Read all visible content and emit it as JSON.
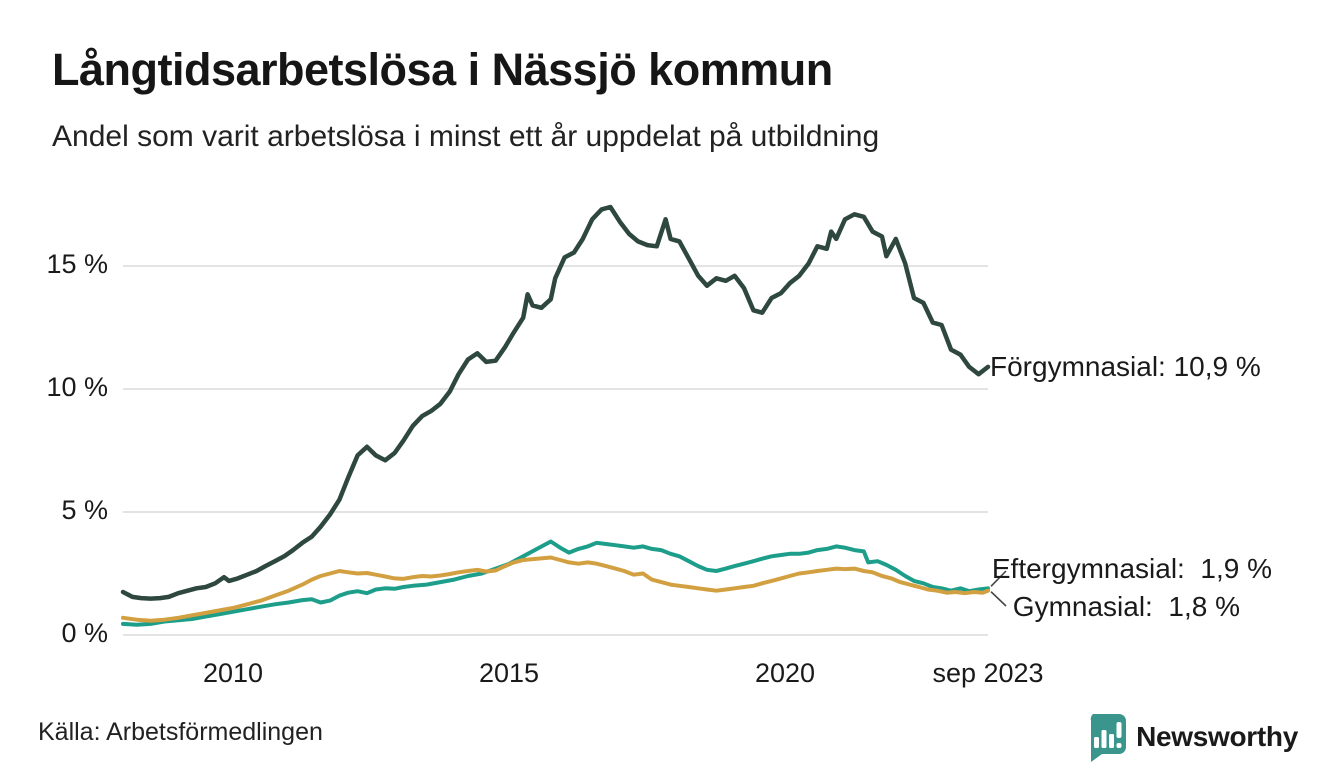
{
  "header": {
    "title": "Långtidsarbetslösa i Nässjö kommun",
    "subtitle": "Andel som varit arbetslösa i minst ett år uppdelat på utbildning"
  },
  "footer": {
    "source": "Källa: Arbetsförmedlingen",
    "brand": "Newsworthy"
  },
  "colors": {
    "background": "#ffffff",
    "grid": "#e3e3e3",
    "text": "#1a1a1a",
    "brand_teal": "#3a968c",
    "forgymnasial": "#2e473f",
    "eftergymnasial": "#1d9e8b",
    "gymnasial": "#d2a040"
  },
  "chart_data": {
    "type": "line",
    "title": "Långtidsarbetslösa i Nässjö kommun",
    "subtitle": "Andel som varit arbetslösa i minst ett år uppdelat på utbildning",
    "xlabel": "",
    "ylabel": "",
    "xlim": [
      2008.0,
      2023.67
    ],
    "ylim": [
      0,
      17.5
    ],
    "grid": true,
    "legend_position": "end-of-line-labels",
    "yticks": [
      {
        "v": 0,
        "label": "0 %"
      },
      {
        "v": 5,
        "label": "5 %"
      },
      {
        "v": 10,
        "label": "10 %"
      },
      {
        "v": 15,
        "label": "15 %"
      }
    ],
    "xticks": [
      {
        "t": 2010,
        "label": "2010"
      },
      {
        "t": 2015,
        "label": "2015"
      },
      {
        "t": 2020,
        "label": "2020"
      },
      {
        "t": 2023.67,
        "label": "sep 2023"
      }
    ],
    "series": [
      {
        "name": "Förgymnasial",
        "color": "#2e473f",
        "end_label": "Förgymnasial: 10,9 %",
        "end_value": 10.9,
        "points": [
          [
            2008.0,
            1.75
          ],
          [
            2008.17,
            1.55
          ],
          [
            2008.33,
            1.5
          ],
          [
            2008.5,
            1.48
          ],
          [
            2008.67,
            1.5
          ],
          [
            2008.83,
            1.55
          ],
          [
            2009.0,
            1.7
          ],
          [
            2009.17,
            1.8
          ],
          [
            2009.33,
            1.9
          ],
          [
            2009.5,
            1.95
          ],
          [
            2009.67,
            2.1
          ],
          [
            2009.83,
            2.35
          ],
          [
            2009.92,
            2.2
          ],
          [
            2010.08,
            2.3
          ],
          [
            2010.25,
            2.45
          ],
          [
            2010.42,
            2.6
          ],
          [
            2010.58,
            2.8
          ],
          [
            2010.75,
            3.0
          ],
          [
            2010.92,
            3.2
          ],
          [
            2011.08,
            3.45
          ],
          [
            2011.25,
            3.75
          ],
          [
            2011.42,
            4.0
          ],
          [
            2011.58,
            4.4
          ],
          [
            2011.75,
            4.9
          ],
          [
            2011.92,
            5.5
          ],
          [
            2012.08,
            6.4
          ],
          [
            2012.25,
            7.3
          ],
          [
            2012.42,
            7.65
          ],
          [
            2012.58,
            7.3
          ],
          [
            2012.75,
            7.1
          ],
          [
            2012.92,
            7.4
          ],
          [
            2013.08,
            7.9
          ],
          [
            2013.25,
            8.5
          ],
          [
            2013.42,
            8.9
          ],
          [
            2013.58,
            9.1
          ],
          [
            2013.75,
            9.4
          ],
          [
            2013.92,
            9.9
          ],
          [
            2014.08,
            10.6
          ],
          [
            2014.25,
            11.2
          ],
          [
            2014.42,
            11.45
          ],
          [
            2014.58,
            11.1
          ],
          [
            2014.75,
            11.15
          ],
          [
            2014.92,
            11.7
          ],
          [
            2015.08,
            12.3
          ],
          [
            2015.25,
            12.9
          ],
          [
            2015.33,
            13.85
          ],
          [
            2015.42,
            13.4
          ],
          [
            2015.58,
            13.3
          ],
          [
            2015.75,
            13.65
          ],
          [
            2015.83,
            14.5
          ],
          [
            2016.0,
            15.35
          ],
          [
            2016.17,
            15.55
          ],
          [
            2016.33,
            16.1
          ],
          [
            2016.5,
            16.9
          ],
          [
            2016.67,
            17.3
          ],
          [
            2016.83,
            17.4
          ],
          [
            2017.0,
            16.8
          ],
          [
            2017.17,
            16.3
          ],
          [
            2017.33,
            16.0
          ],
          [
            2017.5,
            15.85
          ],
          [
            2017.67,
            15.8
          ],
          [
            2017.83,
            16.9
          ],
          [
            2017.92,
            16.1
          ],
          [
            2018.08,
            16.0
          ],
          [
            2018.25,
            15.3
          ],
          [
            2018.42,
            14.6
          ],
          [
            2018.58,
            14.2
          ],
          [
            2018.75,
            14.5
          ],
          [
            2018.92,
            14.4
          ],
          [
            2019.08,
            14.6
          ],
          [
            2019.25,
            14.1
          ],
          [
            2019.42,
            13.2
          ],
          [
            2019.58,
            13.1
          ],
          [
            2019.75,
            13.7
          ],
          [
            2019.92,
            13.9
          ],
          [
            2020.08,
            14.3
          ],
          [
            2020.25,
            14.6
          ],
          [
            2020.42,
            15.1
          ],
          [
            2020.58,
            15.8
          ],
          [
            2020.75,
            15.7
          ],
          [
            2020.83,
            16.4
          ],
          [
            2020.92,
            16.1
          ],
          [
            2021.08,
            16.9
          ],
          [
            2021.25,
            17.1
          ],
          [
            2021.42,
            17.0
          ],
          [
            2021.58,
            16.4
          ],
          [
            2021.75,
            16.2
          ],
          [
            2021.83,
            15.4
          ],
          [
            2022.0,
            16.1
          ],
          [
            2022.17,
            15.1
          ],
          [
            2022.33,
            13.7
          ],
          [
            2022.5,
            13.5
          ],
          [
            2022.67,
            12.7
          ],
          [
            2022.83,
            12.6
          ],
          [
            2023.0,
            11.6
          ],
          [
            2023.17,
            11.4
          ],
          [
            2023.33,
            10.9
          ],
          [
            2023.5,
            10.6
          ],
          [
            2023.67,
            10.9
          ]
        ]
      },
      {
        "name": "Eftergymnasial",
        "color": "#1d9e8b",
        "end_label": "Eftergymnasial:  1,9 %",
        "end_value": 1.9,
        "points": [
          [
            2008.0,
            0.45
          ],
          [
            2008.25,
            0.42
          ],
          [
            2008.5,
            0.45
          ],
          [
            2008.75,
            0.55
          ],
          [
            2009.0,
            0.6
          ],
          [
            2009.25,
            0.65
          ],
          [
            2009.5,
            0.75
          ],
          [
            2009.75,
            0.85
          ],
          [
            2010.0,
            0.95
          ],
          [
            2010.25,
            1.05
          ],
          [
            2010.5,
            1.15
          ],
          [
            2010.75,
            1.25
          ],
          [
            2011.0,
            1.32
          ],
          [
            2011.25,
            1.42
          ],
          [
            2011.42,
            1.45
          ],
          [
            2011.58,
            1.32
          ],
          [
            2011.75,
            1.4
          ],
          [
            2011.92,
            1.6
          ],
          [
            2012.08,
            1.72
          ],
          [
            2012.25,
            1.78
          ],
          [
            2012.42,
            1.7
          ],
          [
            2012.58,
            1.85
          ],
          [
            2012.75,
            1.9
          ],
          [
            2012.92,
            1.88
          ],
          [
            2013.08,
            1.95
          ],
          [
            2013.25,
            2.0
          ],
          [
            2013.5,
            2.05
          ],
          [
            2013.75,
            2.15
          ],
          [
            2014.0,
            2.25
          ],
          [
            2014.25,
            2.4
          ],
          [
            2014.5,
            2.5
          ],
          [
            2014.75,
            2.7
          ],
          [
            2015.0,
            2.9
          ],
          [
            2015.25,
            3.2
          ],
          [
            2015.5,
            3.5
          ],
          [
            2015.75,
            3.8
          ],
          [
            2015.92,
            3.55
          ],
          [
            2016.08,
            3.35
          ],
          [
            2016.25,
            3.5
          ],
          [
            2016.42,
            3.6
          ],
          [
            2016.58,
            3.75
          ],
          [
            2016.75,
            3.7
          ],
          [
            2016.92,
            3.65
          ],
          [
            2017.08,
            3.6
          ],
          [
            2017.25,
            3.55
          ],
          [
            2017.42,
            3.6
          ],
          [
            2017.58,
            3.5
          ],
          [
            2017.75,
            3.45
          ],
          [
            2017.92,
            3.3
          ],
          [
            2018.08,
            3.2
          ],
          [
            2018.25,
            3.0
          ],
          [
            2018.42,
            2.8
          ],
          [
            2018.58,
            2.65
          ],
          [
            2018.75,
            2.6
          ],
          [
            2018.92,
            2.7
          ],
          [
            2019.08,
            2.8
          ],
          [
            2019.25,
            2.9
          ],
          [
            2019.42,
            3.0
          ],
          [
            2019.58,
            3.1
          ],
          [
            2019.75,
            3.2
          ],
          [
            2019.92,
            3.25
          ],
          [
            2020.08,
            3.3
          ],
          [
            2020.25,
            3.3
          ],
          [
            2020.42,
            3.35
          ],
          [
            2020.58,
            3.45
          ],
          [
            2020.75,
            3.5
          ],
          [
            2020.92,
            3.6
          ],
          [
            2021.08,
            3.55
          ],
          [
            2021.25,
            3.45
          ],
          [
            2021.42,
            3.4
          ],
          [
            2021.5,
            2.95
          ],
          [
            2021.67,
            3.0
          ],
          [
            2021.83,
            2.85
          ],
          [
            2022.0,
            2.65
          ],
          [
            2022.17,
            2.4
          ],
          [
            2022.33,
            2.2
          ],
          [
            2022.5,
            2.1
          ],
          [
            2022.67,
            1.95
          ],
          [
            2022.83,
            1.9
          ],
          [
            2023.0,
            1.8
          ],
          [
            2023.17,
            1.9
          ],
          [
            2023.33,
            1.78
          ],
          [
            2023.5,
            1.85
          ],
          [
            2023.67,
            1.9
          ]
        ]
      },
      {
        "name": "Gymnasial",
        "color": "#d2a040",
        "end_label": "Gymnasial:  1,8 %",
        "end_value": 1.8,
        "points": [
          [
            2008.0,
            0.7
          ],
          [
            2008.25,
            0.62
          ],
          [
            2008.5,
            0.58
          ],
          [
            2008.75,
            0.62
          ],
          [
            2009.0,
            0.7
          ],
          [
            2009.25,
            0.8
          ],
          [
            2009.5,
            0.9
          ],
          [
            2009.75,
            1.0
          ],
          [
            2010.0,
            1.1
          ],
          [
            2010.25,
            1.25
          ],
          [
            2010.5,
            1.4
          ],
          [
            2010.75,
            1.6
          ],
          [
            2011.0,
            1.8
          ],
          [
            2011.25,
            2.05
          ],
          [
            2011.42,
            2.25
          ],
          [
            2011.58,
            2.4
          ],
          [
            2011.75,
            2.5
          ],
          [
            2011.92,
            2.6
          ],
          [
            2012.08,
            2.55
          ],
          [
            2012.25,
            2.5
          ],
          [
            2012.42,
            2.52
          ],
          [
            2012.58,
            2.45
          ],
          [
            2012.75,
            2.38
          ],
          [
            2012.92,
            2.3
          ],
          [
            2013.08,
            2.28
          ],
          [
            2013.25,
            2.35
          ],
          [
            2013.42,
            2.4
          ],
          [
            2013.58,
            2.38
          ],
          [
            2013.75,
            2.42
          ],
          [
            2013.92,
            2.48
          ],
          [
            2014.08,
            2.55
          ],
          [
            2014.25,
            2.6
          ],
          [
            2014.42,
            2.65
          ],
          [
            2014.58,
            2.58
          ],
          [
            2014.75,
            2.62
          ],
          [
            2014.92,
            2.8
          ],
          [
            2015.08,
            2.95
          ],
          [
            2015.25,
            3.05
          ],
          [
            2015.5,
            3.1
          ],
          [
            2015.75,
            3.15
          ],
          [
            2015.92,
            3.05
          ],
          [
            2016.08,
            2.95
          ],
          [
            2016.25,
            2.9
          ],
          [
            2016.42,
            2.95
          ],
          [
            2016.58,
            2.9
          ],
          [
            2016.75,
            2.8
          ],
          [
            2016.92,
            2.7
          ],
          [
            2017.08,
            2.6
          ],
          [
            2017.25,
            2.45
          ],
          [
            2017.42,
            2.5
          ],
          [
            2017.58,
            2.25
          ],
          [
            2017.75,
            2.15
          ],
          [
            2017.92,
            2.05
          ],
          [
            2018.08,
            2.0
          ],
          [
            2018.25,
            1.95
          ],
          [
            2018.42,
            1.9
          ],
          [
            2018.58,
            1.85
          ],
          [
            2018.75,
            1.8
          ],
          [
            2018.92,
            1.85
          ],
          [
            2019.08,
            1.9
          ],
          [
            2019.25,
            1.95
          ],
          [
            2019.42,
            2.0
          ],
          [
            2019.58,
            2.1
          ],
          [
            2019.75,
            2.2
          ],
          [
            2019.92,
            2.3
          ],
          [
            2020.08,
            2.4
          ],
          [
            2020.25,
            2.5
          ],
          [
            2020.42,
            2.55
          ],
          [
            2020.58,
            2.6
          ],
          [
            2020.75,
            2.65
          ],
          [
            2020.92,
            2.7
          ],
          [
            2021.08,
            2.68
          ],
          [
            2021.25,
            2.7
          ],
          [
            2021.42,
            2.6
          ],
          [
            2021.58,
            2.55
          ],
          [
            2021.75,
            2.4
          ],
          [
            2021.92,
            2.3
          ],
          [
            2022.08,
            2.15
          ],
          [
            2022.25,
            2.05
          ],
          [
            2022.42,
            1.95
          ],
          [
            2022.58,
            1.85
          ],
          [
            2022.75,
            1.8
          ],
          [
            2022.92,
            1.72
          ],
          [
            2023.08,
            1.75
          ],
          [
            2023.25,
            1.7
          ],
          [
            2023.42,
            1.75
          ],
          [
            2023.58,
            1.72
          ],
          [
            2023.67,
            1.8
          ]
        ]
      }
    ]
  }
}
